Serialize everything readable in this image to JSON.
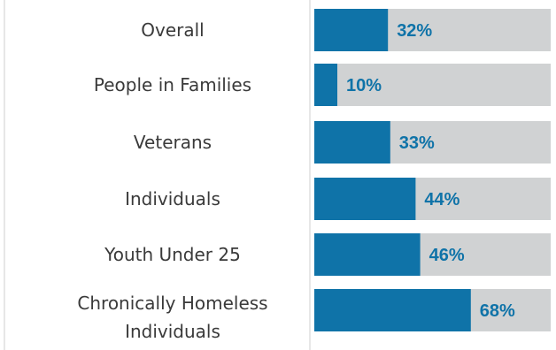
{
  "chart_data": {
    "type": "bar",
    "orientation": "horizontal",
    "categories": [
      [
        "Overall"
      ],
      [
        "People in Families"
      ],
      [
        "Veterans"
      ],
      [
        "Individuals"
      ],
      [
        "Youth Under 25"
      ],
      [
        "Chronically Homeless",
        "Individuals"
      ]
    ],
    "values": [
      32,
      10,
      33,
      44,
      46,
      68
    ],
    "value_labels": [
      "32%",
      "10%",
      "33%",
      "44%",
      "46%",
      "68%"
    ],
    "xlim": [
      0,
      100
    ],
    "title": "",
    "xlabel": "",
    "ylabel": "",
    "grid": false,
    "legend": "none",
    "colors": {
      "bar": "#0f73a8",
      "track": "#d0d2d3",
      "value_text": "#0f73a8",
      "category_text": "#3a3a3a",
      "axis_line": "#cfcfcf"
    }
  }
}
